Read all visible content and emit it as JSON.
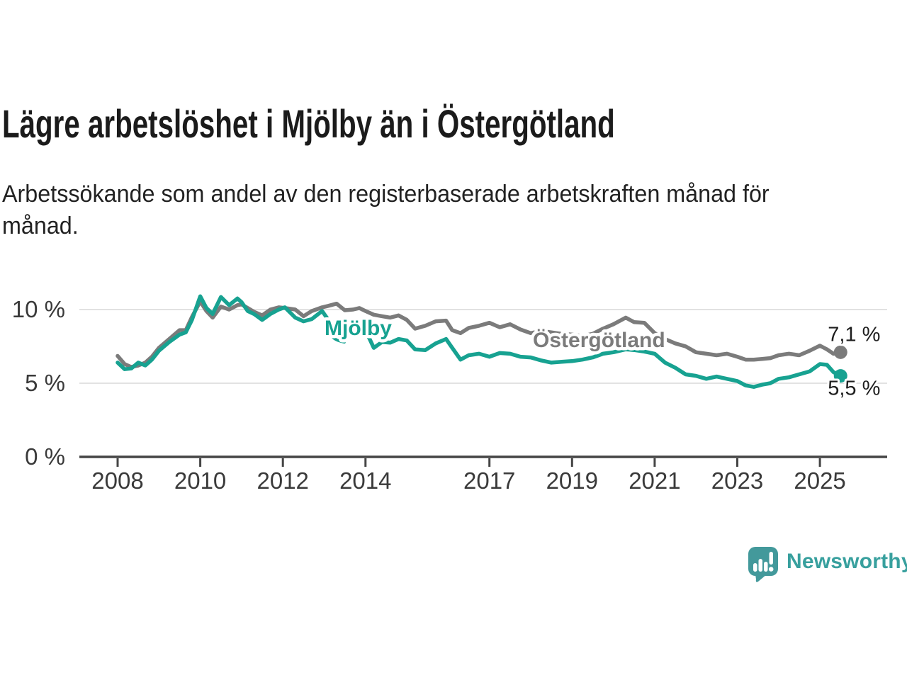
{
  "chart_data": {
    "type": "line",
    "title": "Lägre arbetslöshet i Mjölby än i Östergötland",
    "subtitle": "Arbetssökande som andel av den registerbaserade arbetskraften månad för\nmånad.",
    "x_unit": "decimal-year",
    "x": [
      2008.0,
      2008.17,
      2008.33,
      2008.5,
      2008.67,
      2008.83,
      2009.0,
      2009.25,
      2009.5,
      2009.65,
      2009.8,
      2010.0,
      2010.15,
      2010.3,
      2010.5,
      2010.7,
      2010.9,
      2011.0,
      2011.15,
      2011.3,
      2011.5,
      2011.7,
      2011.9,
      2012.05,
      2012.3,
      2012.5,
      2012.7,
      2012.95,
      2013.1,
      2013.3,
      2013.5,
      2013.7,
      2013.85,
      2014.0,
      2014.2,
      2014.4,
      2014.6,
      2014.8,
      2015.0,
      2015.2,
      2015.45,
      2015.7,
      2015.95,
      2016.1,
      2016.3,
      2016.5,
      2016.75,
      2017.0,
      2017.25,
      2017.5,
      2017.75,
      2018.0,
      2018.25,
      2018.5,
      2018.75,
      2019.0,
      2019.25,
      2019.5,
      2019.75,
      2020.0,
      2020.3,
      2020.5,
      2020.75,
      2021.0,
      2021.25,
      2021.5,
      2021.75,
      2022.0,
      2022.25,
      2022.5,
      2022.75,
      2023.0,
      2023.2,
      2023.4,
      2023.6,
      2023.8,
      2024.0,
      2024.25,
      2024.5,
      2024.75,
      2025.0,
      2025.17,
      2025.33,
      2025.5
    ],
    "series": [
      {
        "name": "Mjölby",
        "color": "#17A291",
        "end_label": "5,5 %",
        "values": [
          6.4,
          5.95,
          6.0,
          6.4,
          6.2,
          6.6,
          7.2,
          7.8,
          8.3,
          8.45,
          9.3,
          10.9,
          10.1,
          9.7,
          10.85,
          10.3,
          10.75,
          10.5,
          9.9,
          9.7,
          9.3,
          9.7,
          10.0,
          10.15,
          9.45,
          9.2,
          9.35,
          9.9,
          9.3,
          9.0,
          8.8,
          9.0,
          8.85,
          8.6,
          7.4,
          7.8,
          7.75,
          8.0,
          7.9,
          7.3,
          7.25,
          7.7,
          8.0,
          7.4,
          6.6,
          6.9,
          7.0,
          6.8,
          7.05,
          7.0,
          6.8,
          6.75,
          6.55,
          6.4,
          6.45,
          6.5,
          6.6,
          6.75,
          7.0,
          7.1,
          7.3,
          7.25,
          7.15,
          7.0,
          6.4,
          6.05,
          5.6,
          5.5,
          5.3,
          5.45,
          5.3,
          5.15,
          4.85,
          4.75,
          4.9,
          5.0,
          5.3,
          5.4,
          5.6,
          5.8,
          6.3,
          6.25,
          5.75,
          5.5
        ]
      },
      {
        "name": "Östergötland",
        "color": "#7B7B7B",
        "end_label": "7,1 %",
        "values": [
          6.85,
          6.3,
          6.1,
          6.2,
          6.4,
          6.8,
          7.4,
          8.0,
          8.6,
          8.6,
          9.5,
          10.55,
          9.9,
          9.45,
          10.2,
          10.0,
          10.3,
          10.35,
          10.1,
          9.85,
          9.6,
          10.0,
          10.15,
          10.1,
          10.0,
          9.55,
          9.9,
          10.15,
          10.25,
          10.4,
          9.95,
          10.0,
          10.1,
          9.9,
          9.65,
          9.55,
          9.45,
          9.6,
          9.3,
          8.7,
          8.9,
          9.2,
          9.25,
          8.6,
          8.4,
          8.75,
          8.9,
          9.1,
          8.8,
          9.0,
          8.65,
          8.4,
          8.55,
          8.45,
          8.35,
          8.3,
          8.2,
          8.35,
          8.7,
          9.0,
          9.45,
          9.15,
          9.1,
          8.4,
          8.0,
          7.7,
          7.5,
          7.1,
          7.0,
          6.9,
          7.0,
          6.8,
          6.6,
          6.6,
          6.65,
          6.7,
          6.9,
          7.0,
          6.9,
          7.2,
          7.55,
          7.3,
          7.0,
          7.1
        ]
      }
    ],
    "y_ticks": [
      {
        "value": 0,
        "label": "0 %"
      },
      {
        "value": 5,
        "label": "5 %"
      },
      {
        "value": 10,
        "label": "10 %"
      }
    ],
    "x_ticks": [
      {
        "value": 2008,
        "label": "2008"
      },
      {
        "value": 2010,
        "label": "2010"
      },
      {
        "value": 2012,
        "label": "2012"
      },
      {
        "value": 2014,
        "label": "2014"
      },
      {
        "value": 2017,
        "label": "2017"
      },
      {
        "value": 2019,
        "label": "2019"
      },
      {
        "value": 2021,
        "label": "2021"
      },
      {
        "value": 2023,
        "label": "2023"
      },
      {
        "value": 2025,
        "label": "2025"
      }
    ],
    "ylim": [
      0,
      11.5
    ],
    "xlim": [
      2007.9,
      2026.1
    ],
    "grid": "horizontal-y",
    "legend": "inline-series-labels"
  },
  "logo": {
    "text": "Newsworthy",
    "icon_color": "#43999B",
    "text_color": "#38A09E"
  }
}
